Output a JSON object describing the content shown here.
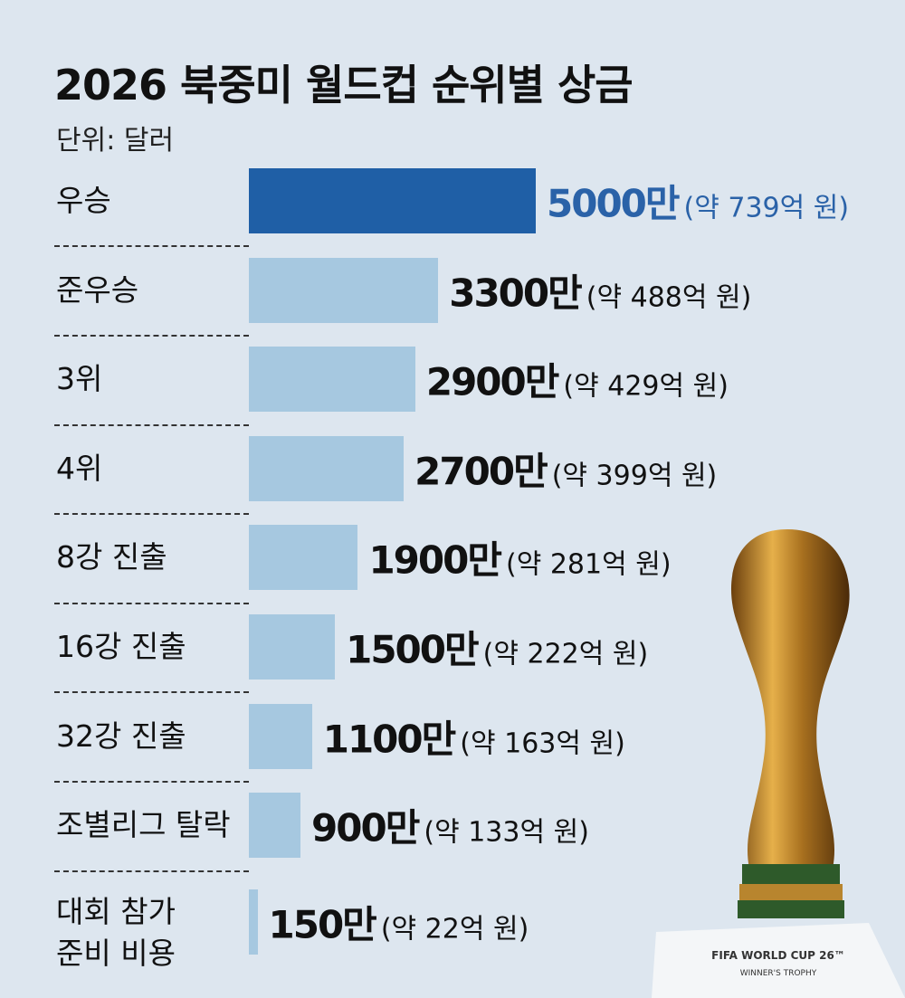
{
  "chart_data": {
    "type": "bar",
    "orientation": "horizontal",
    "title": "2026 북중미 월드컵 순위별 상금",
    "subtitle": "단위: 달러",
    "categories": [
      "우승",
      "준우승",
      "3위",
      "4위",
      "8강 진출",
      "16강 진출",
      "32강 진출",
      "조별리그 탈락",
      "대회 참가\n준비 비용"
    ],
    "values": [
      5000,
      3300,
      2900,
      2700,
      1900,
      1500,
      1100,
      900,
      150
    ],
    "value_labels": [
      "5000만",
      "3300만",
      "2900만",
      "2700만",
      "1900만",
      "1500만",
      "1100만",
      "900만",
      "150만"
    ],
    "krw_labels": [
      "(약 739억 원)",
      "(약 488억 원)",
      "(약 429억 원)",
      "(약 399억 원)",
      "(약 281억 원)",
      "(약 222억 원)",
      "(약 163억 원)",
      "(약 133억 원)",
      "(약 22억 원)"
    ],
    "colors": [
      "#1f5fa6",
      "#a6c8e0",
      "#a6c8e0",
      "#a6c8e0",
      "#a6c8e0",
      "#a6c8e0",
      "#a6c8e0",
      "#a6c8e0",
      "#a6c8e0"
    ],
    "label_colors": [
      "#2a62a8",
      "#111111",
      "#111111",
      "#111111",
      "#111111",
      "#111111",
      "#111111",
      "#111111",
      "#111111"
    ],
    "image_caption": [
      "FIFA WORLD CUP 26™",
      "WINNER'S TROPHY"
    ]
  }
}
